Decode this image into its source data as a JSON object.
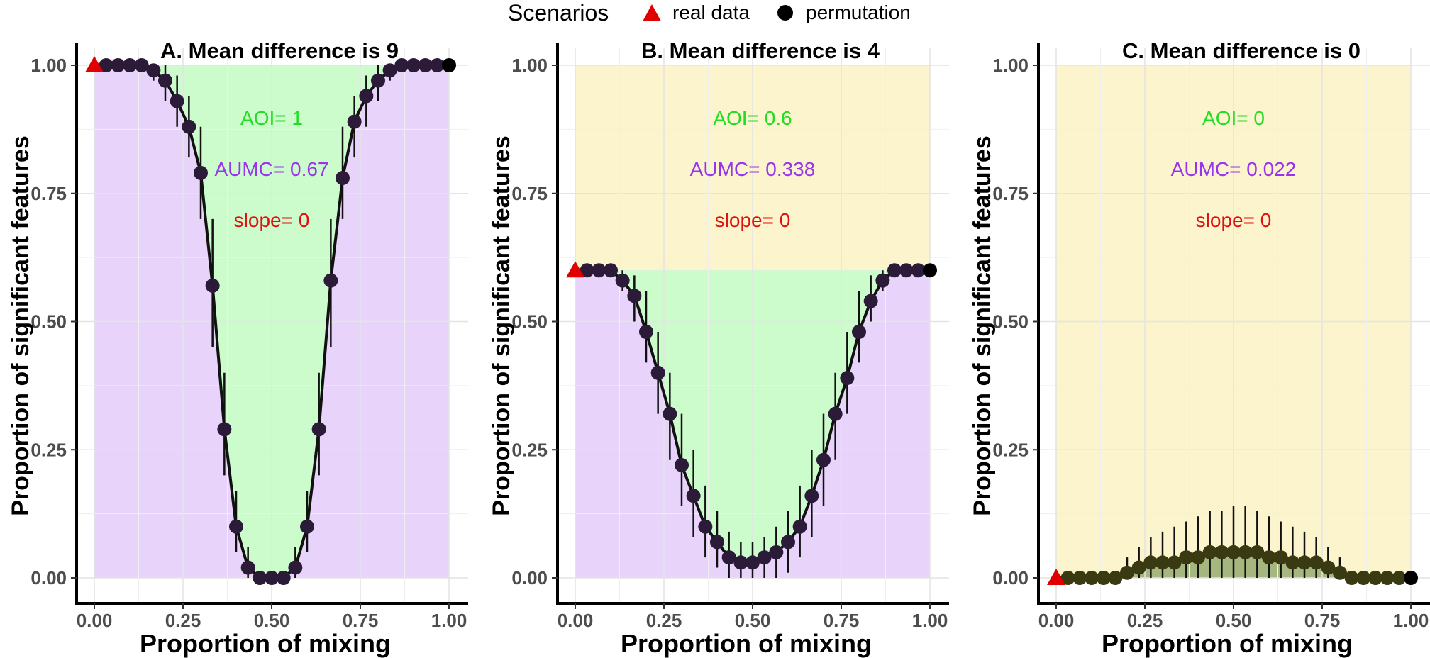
{
  "legend": {
    "title": "Scenarios",
    "entries": [
      {
        "label": "real data",
        "shape": "triangle",
        "color": "#e00000"
      },
      {
        "label": "permutation",
        "shape": "circle",
        "color": "#000000"
      }
    ]
  },
  "colors": {
    "aoi_fill": "#ccfccc",
    "aumc_fill": "#e8d4fa",
    "outside_fill": "#fcf4cc",
    "line": "#111111",
    "point": "#2b1a38",
    "real_point": "#e00000",
    "aoi_text": "#22dd22",
    "aumc_text": "#9933ee",
    "slope_text": "#e01010"
  },
  "chart_data": [
    {
      "type": "line",
      "title": "A. Mean difference is 9",
      "xlabel": "Proportion of mixing",
      "ylabel": "Proportion of significant features",
      "xlim": [
        0,
        1
      ],
      "ylim": [
        0,
        1
      ],
      "x_ticks": [
        "0.00",
        "0.25",
        "0.50",
        "0.75",
        "1.00"
      ],
      "y_ticks": [
        "0.00",
        "0.25",
        "0.50",
        "0.75",
        "1.00"
      ],
      "grid": true,
      "annotations": {
        "aoi": "AOI= 1",
        "aumc": "AUMC= 0.67",
        "slope": "slope= 0"
      },
      "real_data": {
        "x": 0,
        "y": 1.0
      },
      "series": [
        {
          "x": [
            0.0333,
            0.0667,
            0.1,
            0.1333,
            0.1667,
            0.2,
            0.2333,
            0.2667,
            0.3,
            0.3333,
            0.3667,
            0.4,
            0.4333,
            0.4667,
            0.5,
            0.5333,
            0.5667,
            0.6,
            0.6333,
            0.6667,
            0.7,
            0.7333,
            0.7667,
            0.8,
            0.8333,
            0.8667,
            0.9,
            0.9333,
            0.9667,
            1.0
          ],
          "y": [
            1.0,
            1.0,
            1.0,
            1.0,
            0.99,
            0.97,
            0.93,
            0.88,
            0.79,
            0.57,
            0.29,
            0.1,
            0.02,
            0.0,
            0.0,
            0.0,
            0.02,
            0.1,
            0.29,
            0.58,
            0.78,
            0.89,
            0.94,
            0.97,
            0.99,
            1.0,
            1.0,
            1.0,
            1.0,
            1.0
          ],
          "ylow": [
            1.0,
            1.0,
            1.0,
            1.0,
            0.97,
            0.93,
            0.88,
            0.82,
            0.7,
            0.45,
            0.2,
            0.05,
            0.0,
            0.0,
            0.0,
            0.0,
            0.0,
            0.05,
            0.2,
            0.45,
            0.7,
            0.82,
            0.88,
            0.93,
            0.97,
            1.0,
            1.0,
            1.0,
            1.0,
            1.0
          ],
          "yhigh": [
            1.0,
            1.0,
            1.0,
            1.0,
            1.0,
            1.0,
            0.98,
            0.94,
            0.88,
            0.7,
            0.4,
            0.17,
            0.06,
            0.0,
            0.0,
            0.0,
            0.06,
            0.17,
            0.4,
            0.7,
            0.88,
            0.94,
            0.98,
            1.0,
            1.0,
            1.0,
            1.0,
            1.0,
            1.0,
            1.0
          ]
        }
      ]
    },
    {
      "type": "line",
      "title": "B.  Mean difference is 4",
      "xlabel": "Proportion of mixing",
      "ylabel": "Proportion of significant features",
      "xlim": [
        0,
        1
      ],
      "ylim": [
        0,
        1
      ],
      "x_ticks": [
        "0.00",
        "0.25",
        "0.50",
        "0.75",
        "1.00"
      ],
      "y_ticks": [
        "0.00",
        "0.25",
        "0.50",
        "0.75",
        "1.00"
      ],
      "grid": true,
      "annotations": {
        "aoi": "AOI= 0.6",
        "aumc": "AUMC= 0.338",
        "slope": "slope= 0"
      },
      "real_data": {
        "x": 0,
        "y": 0.6
      },
      "series": [
        {
          "x": [
            0.0333,
            0.0667,
            0.1,
            0.1333,
            0.1667,
            0.2,
            0.2333,
            0.2667,
            0.3,
            0.3333,
            0.3667,
            0.4,
            0.4333,
            0.4667,
            0.5,
            0.5333,
            0.5667,
            0.6,
            0.6333,
            0.6667,
            0.7,
            0.7333,
            0.7667,
            0.8,
            0.8333,
            0.8667,
            0.9,
            0.9333,
            0.9667,
            1.0
          ],
          "y": [
            0.6,
            0.6,
            0.6,
            0.58,
            0.55,
            0.48,
            0.4,
            0.32,
            0.22,
            0.16,
            0.1,
            0.07,
            0.04,
            0.03,
            0.03,
            0.04,
            0.05,
            0.07,
            0.1,
            0.16,
            0.23,
            0.32,
            0.39,
            0.48,
            0.54,
            0.58,
            0.6,
            0.6,
            0.6,
            0.6
          ],
          "ylow": [
            0.6,
            0.6,
            0.6,
            0.56,
            0.5,
            0.42,
            0.32,
            0.23,
            0.14,
            0.08,
            0.04,
            0.02,
            0.0,
            0.0,
            0.0,
            0.0,
            0.0,
            0.01,
            0.04,
            0.08,
            0.14,
            0.23,
            0.32,
            0.42,
            0.5,
            0.56,
            0.6,
            0.6,
            0.6,
            0.6
          ],
          "yhigh": [
            0.6,
            0.6,
            0.6,
            0.6,
            0.59,
            0.56,
            0.48,
            0.4,
            0.32,
            0.25,
            0.18,
            0.13,
            0.09,
            0.07,
            0.07,
            0.08,
            0.1,
            0.13,
            0.18,
            0.25,
            0.32,
            0.4,
            0.48,
            0.56,
            0.59,
            0.6,
            0.6,
            0.6,
            0.6,
            0.6
          ]
        }
      ]
    },
    {
      "type": "line",
      "title": "C. Mean difference is 0",
      "xlabel": "Proportion of mixing",
      "ylabel": "Proportion of significant features",
      "xlim": [
        0,
        1
      ],
      "ylim": [
        0,
        1
      ],
      "x_ticks": [
        "0.00",
        "0.25",
        "0.50",
        "0.75",
        "1.00"
      ],
      "y_ticks": [
        "0.00",
        "0.25",
        "0.50",
        "0.75",
        "1.00"
      ],
      "grid": true,
      "annotations": {
        "aoi": "AOI= 0",
        "aumc": "AUMC= 0.022",
        "slope": "slope= 0"
      },
      "real_data": {
        "x": 0,
        "y": 0.0
      },
      "series": [
        {
          "x": [
            0.0333,
            0.0667,
            0.1,
            0.1333,
            0.1667,
            0.2,
            0.2333,
            0.2667,
            0.3,
            0.3333,
            0.3667,
            0.4,
            0.4333,
            0.4667,
            0.5,
            0.5333,
            0.5667,
            0.6,
            0.6333,
            0.6667,
            0.7,
            0.7333,
            0.7667,
            0.8,
            0.8333,
            0.8667,
            0.9,
            0.9333,
            0.9667,
            1.0
          ],
          "y": [
            0.0,
            0.0,
            0.0,
            0.0,
            0.0,
            0.01,
            0.02,
            0.03,
            0.03,
            0.03,
            0.04,
            0.04,
            0.05,
            0.05,
            0.05,
            0.05,
            0.05,
            0.04,
            0.04,
            0.03,
            0.03,
            0.03,
            0.02,
            0.01,
            0.0,
            0.0,
            0.0,
            0.0,
            0.0,
            0.0
          ],
          "ylow": [
            0.0,
            0.0,
            0.0,
            0.0,
            0.0,
            0.0,
            0.0,
            0.0,
            0.0,
            0.0,
            0.0,
            0.0,
            0.0,
            0.0,
            0.0,
            0.0,
            0.0,
            0.0,
            0.0,
            0.0,
            0.0,
            0.0,
            0.0,
            0.0,
            0.0,
            0.0,
            0.0,
            0.0,
            0.0,
            0.0
          ],
          "yhigh": [
            0.0,
            0.0,
            0.0,
            0.0,
            0.0,
            0.04,
            0.06,
            0.08,
            0.09,
            0.1,
            0.11,
            0.12,
            0.13,
            0.13,
            0.14,
            0.14,
            0.13,
            0.12,
            0.11,
            0.1,
            0.09,
            0.08,
            0.06,
            0.04,
            0.0,
            0.0,
            0.0,
            0.0,
            0.0,
            0.0
          ]
        }
      ]
    }
  ]
}
